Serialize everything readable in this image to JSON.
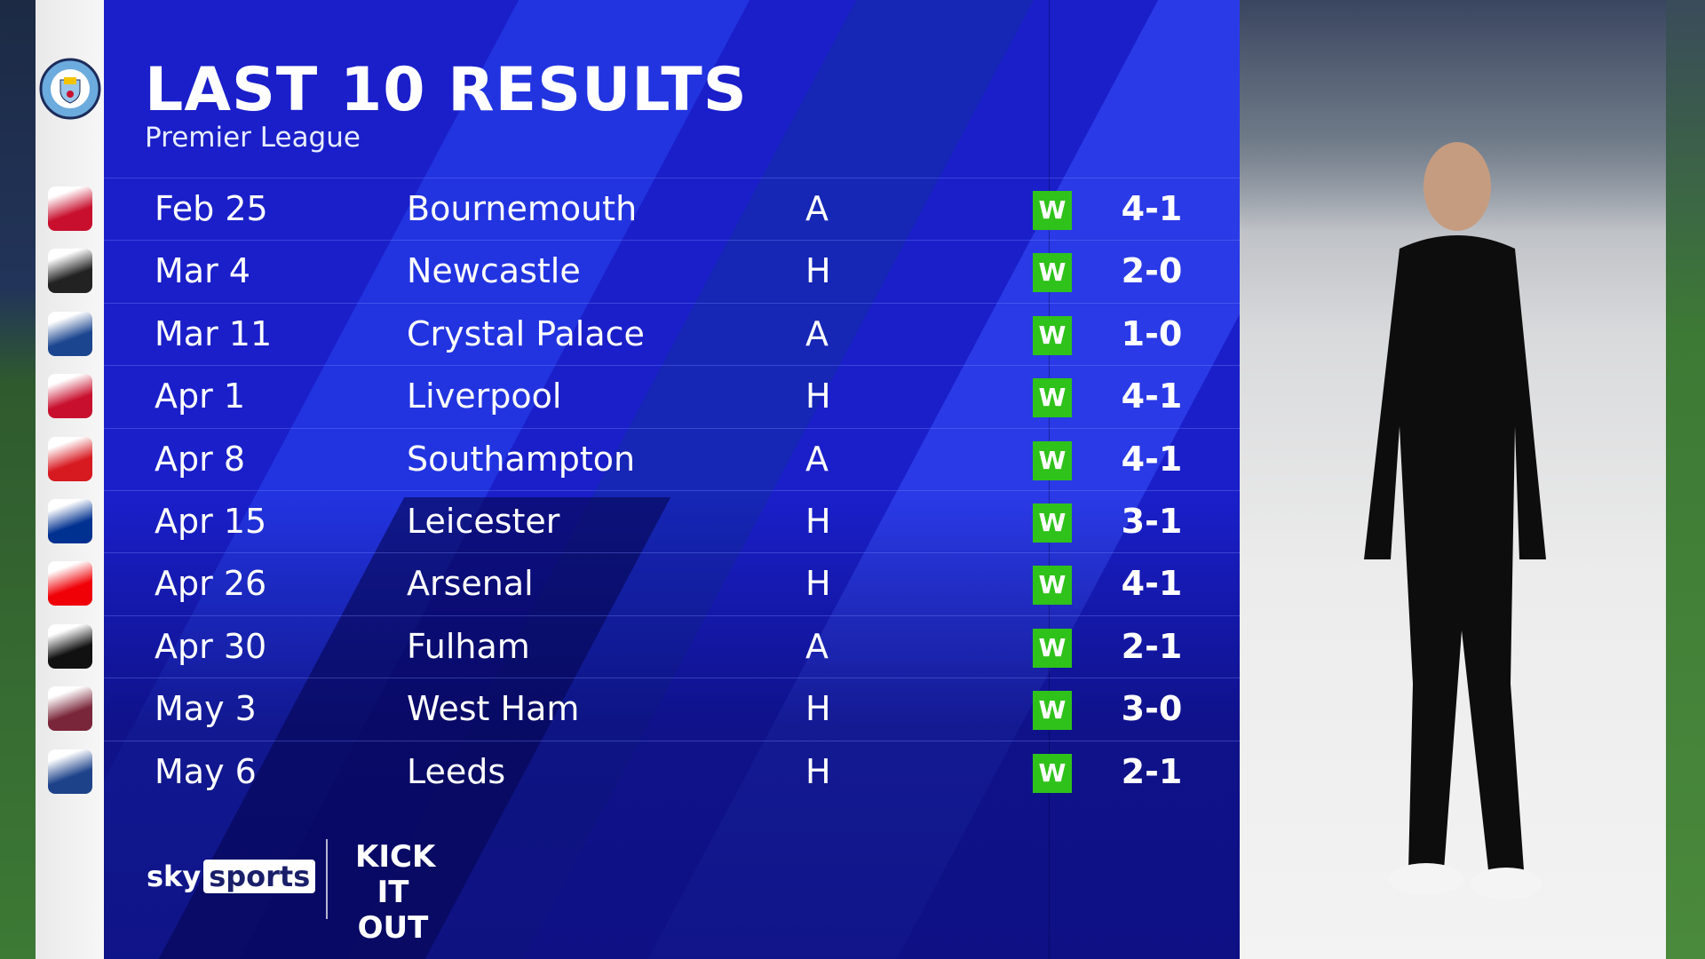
{
  "header": {
    "title": "LAST 10 RESULTS",
    "subtitle": "Premier League"
  },
  "club_crest": "manchester-city-crest",
  "colors": {
    "panel": "#1a1fc9",
    "win": "#2fc21a"
  },
  "results": [
    {
      "date": "Feb 25",
      "opponent": "Bournemouth",
      "venue": "A",
      "result": "W",
      "score": "4-1",
      "crest_color": "#c8102e"
    },
    {
      "date": "Mar 4",
      "opponent": "Newcastle",
      "venue": "H",
      "result": "W",
      "score": "2-0",
      "crest_color": "#222222"
    },
    {
      "date": "Mar 11",
      "opponent": "Crystal Palace",
      "venue": "A",
      "result": "W",
      "score": "1-0",
      "crest_color": "#1b458f"
    },
    {
      "date": "Apr 1",
      "opponent": "Liverpool",
      "venue": "H",
      "result": "W",
      "score": "4-1",
      "crest_color": "#c8102e"
    },
    {
      "date": "Apr 8",
      "opponent": "Southampton",
      "venue": "A",
      "result": "W",
      "score": "4-1",
      "crest_color": "#d71920"
    },
    {
      "date": "Apr 15",
      "opponent": "Leicester",
      "venue": "H",
      "result": "W",
      "score": "3-1",
      "crest_color": "#003090"
    },
    {
      "date": "Apr 26",
      "opponent": "Arsenal",
      "venue": "H",
      "result": "W",
      "score": "4-1",
      "crest_color": "#ef0107"
    },
    {
      "date": "Apr 30",
      "opponent": "Fulham",
      "venue": "A",
      "result": "W",
      "score": "2-1",
      "crest_color": "#111111"
    },
    {
      "date": "May 3",
      "opponent": "West Ham",
      "venue": "H",
      "result": "W",
      "score": "3-0",
      "crest_color": "#7a263a"
    },
    {
      "date": "May 6",
      "opponent": "Leeds",
      "venue": "H",
      "result": "W",
      "score": "2-1",
      "crest_color": "#1d428a"
    }
  ],
  "branding": {
    "sky": "sky",
    "sports": "sports",
    "kick_it_out": "KICK IT OUT"
  }
}
